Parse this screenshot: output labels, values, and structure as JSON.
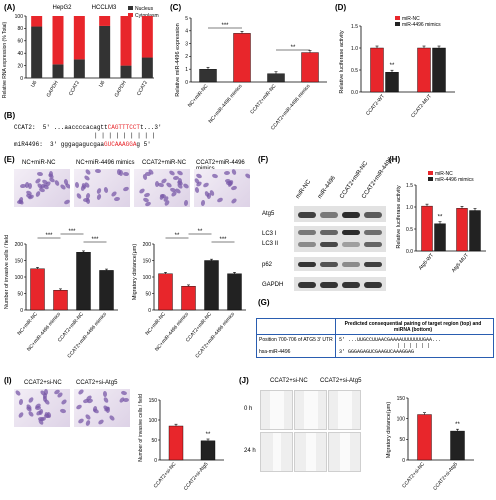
{
  "figure": {
    "labels": [
      "(A)",
      "(B)",
      "(C)",
      "(D)",
      "(E)",
      "(F)",
      "(G)",
      "(H)",
      "(I)",
      "(J)"
    ]
  },
  "panelA": {
    "ylabel": "Relative RNA expression (% Total)",
    "group_labels": [
      "HepG2",
      "HCCLM3"
    ],
    "legend": [
      "Nucleus",
      "Cytoplasm"
    ],
    "colors": {
      "nucleus": "#333333",
      "cytoplasm": "#e8262b"
    },
    "chart_data": {
      "type": "bar",
      "categories": [
        "U6",
        "GAPDH",
        "CCAT2",
        "U6",
        "GAPDH",
        "CCAT2"
      ],
      "series": [
        {
          "name": "Nucleus",
          "values": [
            83,
            22,
            30,
            84,
            20,
            33
          ]
        },
        {
          "name": "Cytoplasm",
          "values": [
            17,
            78,
            70,
            16,
            80,
            67
          ]
        }
      ],
      "ylim": [
        0,
        100
      ],
      "yticks": [
        "0",
        "20",
        "40",
        "60",
        "80",
        "100"
      ]
    }
  },
  "panelB": {
    "line1_prefix": "CCAT2:  5' ...aaccccacagtt",
    "line1_red": "CAGTTTCCT",
    "line1_suffix": "t...3'",
    "bars": "| | | | | | | | |",
    "line2_prefix": "miR4496:  3' gggagagucgaa",
    "line2_red": "GUCAAAGGA",
    "line2_suffix": "g 5'"
  },
  "panelC": {
    "ylabel": "Relative miR-4496  expression",
    "stars": [
      "***",
      "**"
    ],
    "chart_data": {
      "type": "bar",
      "categories": [
        "NC+miR-NC",
        "NC+miR-4496 mimics",
        "CCAT2+miR-NC",
        "CCAT2+miR-4496 mimics"
      ],
      "values": [
        1.0,
        3.8,
        0.65,
        2.3
      ],
      "ylim": [
        0,
        5
      ],
      "yticks": [
        "0",
        "1",
        "2",
        "3",
        "4",
        "5"
      ]
    }
  },
  "panelD": {
    "ylabel": "Relative luciferase activity",
    "legend": [
      "miR-NC",
      "miR-4496 mimics"
    ],
    "stars": "**",
    "chart_data": {
      "type": "bar",
      "categories": [
        "CCAT2-WT",
        "CCAT2-MUT"
      ],
      "series": [
        {
          "name": "miR-NC",
          "values": [
            1.0,
            1.0
          ]
        },
        {
          "name": "miR-4496 mimics",
          "values": [
            0.45,
            1.0
          ]
        }
      ],
      "ylim": [
        0,
        1.5
      ],
      "yticks": [
        "0.0",
        "0.5",
        "1.0",
        "1.5"
      ]
    }
  },
  "panelE": {
    "image_labels": [
      "NC+miR-NC",
      "NC+miR-4496 mimics",
      "CCAT2+miR-NC",
      "CCAT2+miR-4496 mimics"
    ],
    "invasion": {
      "ylabel": "Number of invasive cells / field",
      "stars": [
        "***",
        "***",
        "***"
      ],
      "chart_data": {
        "type": "bar",
        "categories": [
          "NC+miR-NC",
          "NC+miR-4496 mimics",
          "CCAT2+miR-NC",
          "CCAT2+miR-4496 mimics"
        ],
        "values": [
          125,
          60,
          175,
          120
        ],
        "ylim": [
          0,
          200
        ],
        "yticks": [
          "0",
          "50",
          "100",
          "150",
          "200"
        ]
      }
    },
    "migration": {
      "ylabel": "Migratory distance(μm)",
      "stars": [
        "**",
        "***",
        "**"
      ],
      "chart_data": {
        "type": "bar",
        "categories": [
          "NC+miR-NC",
          "NC+miR-4496 mimics",
          "CCAT2+miR-NC",
          "CCAT2+miR-4496 mimics"
        ],
        "values": [
          110,
          72,
          150,
          110
        ],
        "ylim": [
          0,
          200
        ],
        "yticks": [
          "0",
          "50",
          "100",
          "150",
          "200"
        ]
      }
    }
  },
  "panelF": {
    "lanes": [
      "miR-NC",
      "miR-4496",
      "CCAT2+miR-NC",
      "CCAT2+miR-4496"
    ],
    "rows": [
      "Atg5",
      "LC3 I",
      "LC3 II",
      "p62",
      "GAPDH"
    ]
  },
  "panelG": {
    "header": "Predicted consequential pairing of target region (top) and miRNA (bottom)",
    "row1_label": "Position 700-706 of ATG5 3' UTR",
    "row1_seq": "5' ...UUGCCUUAACGAAAAUUUUUUUGAA...",
    "bars": "| | | | | |",
    "row2_label": "hsa-miR-4496",
    "row2_seq": "3'      GGGAGAGUCGAAGUCAAAGGAG"
  },
  "panelH": {
    "ylabel": "Relative luciferase activity",
    "legend": [
      "miR-NC",
      "miR-4496 mimics"
    ],
    "stars": "**",
    "chart_data": {
      "type": "bar",
      "categories": [
        "Atg5-WT",
        "Atg5-MUT"
      ],
      "series": [
        {
          "name": "miR-NC",
          "values": [
            1.02,
            0.97
          ]
        },
        {
          "name": "miR-4496 mimics",
          "values": [
            0.62,
            0.92
          ]
        }
      ],
      "ylim": [
        0,
        1.5
      ],
      "yticks": [
        "0.0",
        "0.5",
        "1.0",
        "1.5"
      ]
    }
  },
  "panelI": {
    "image_labels": [
      "CCAT2+si-NC",
      "CCAT2+si-Atg5"
    ],
    "ylabel": "Number of invasive cells / field",
    "stars": "**",
    "chart_data": {
      "type": "bar",
      "categories": [
        "CCAT2+si-NC",
        "CCAT2+si-Atg5"
      ],
      "values": [
        85,
        48
      ],
      "ylim": [
        0,
        150
      ],
      "yticks": [
        "0",
        "50",
        "100",
        "150"
      ]
    }
  },
  "panelJ": {
    "image_labels": [
      "CCAT2+si-NC",
      "CCAT2+si-Atg5"
    ],
    "time_labels": [
      "0 h",
      "24 h"
    ],
    "ylabel": "Migratory distance(μm)",
    "stars": "**",
    "chart_data": {
      "type": "bar",
      "categories": [
        "CCAT2+si-NC",
        "CCAT2+si-Atg5"
      ],
      "values": [
        110,
        70
      ],
      "ylim": [
        0,
        150
      ],
      "yticks": [
        "0",
        "50",
        "100",
        "150"
      ]
    }
  }
}
